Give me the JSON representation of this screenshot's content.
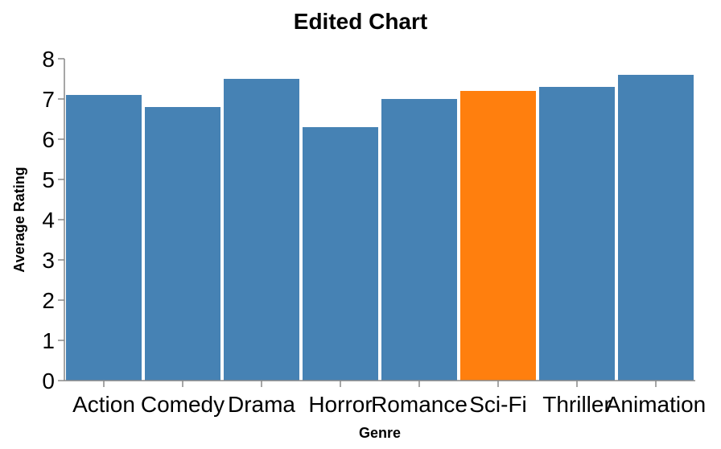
{
  "chart_data": {
    "type": "bar",
    "title": "Edited Chart",
    "xlabel": "Genre",
    "ylabel": "Average Rating",
    "categories": [
      "Action",
      "Comedy",
      "Drama",
      "Horror",
      "Romance",
      "Sci-Fi",
      "Thriller",
      "Animation"
    ],
    "values": [
      7.1,
      6.8,
      7.5,
      6.3,
      7.0,
      7.2,
      7.3,
      7.6
    ],
    "highlight": "Sci-Fi",
    "ylim": [
      0,
      8
    ],
    "yticks": [
      0,
      1,
      2,
      3,
      4,
      5,
      6,
      7,
      8
    ],
    "grid": false,
    "colors": {
      "bar": "#4682b4",
      "highlight": "#ff7f0e"
    }
  }
}
